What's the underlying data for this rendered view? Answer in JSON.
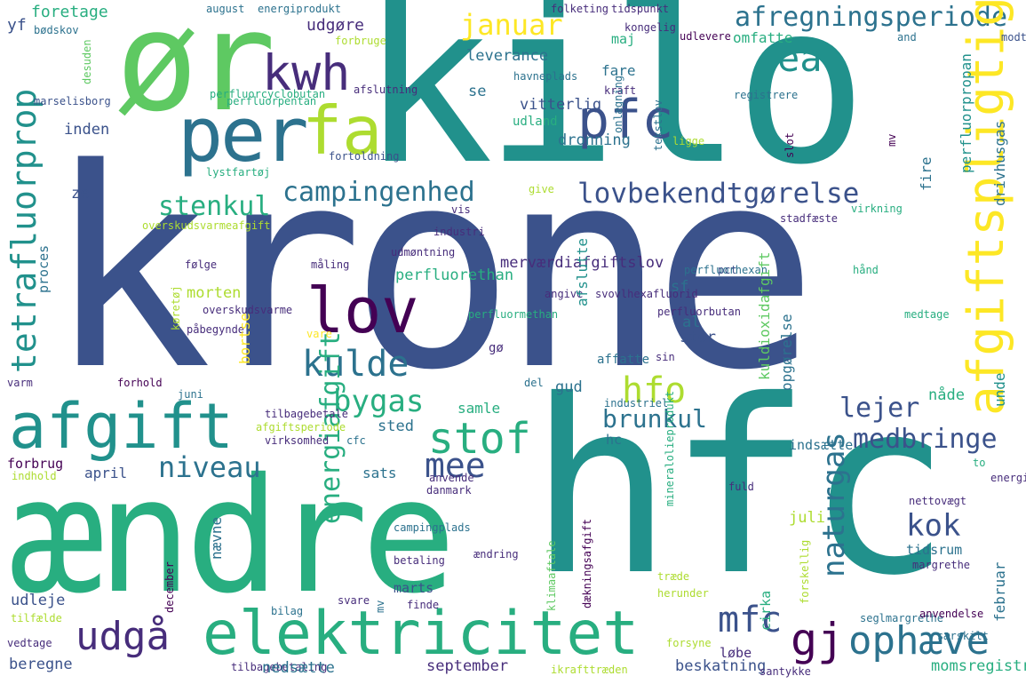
{
  "words": [
    {
      "id": "krone",
      "text": "krone"
    },
    {
      "id": "kilo",
      "text": "kilo"
    },
    {
      "id": "aendre",
      "text": "ændre"
    },
    {
      "id": "hfc",
      "text": "hfc"
    },
    {
      "id": "or",
      "text": "ør"
    },
    {
      "id": "per",
      "text": "per"
    },
    {
      "id": "kwh",
      "text": "kwh"
    },
    {
      "id": "fa",
      "text": "fa"
    },
    {
      "id": "pfc",
      "text": "pfc"
    },
    {
      "id": "ea",
      "text": "ea"
    },
    {
      "id": "afregningsperiode",
      "text": "afregningsperiode"
    },
    {
      "id": "januar",
      "text": "januar"
    },
    {
      "id": "afgiftspligtig",
      "text": "afgiftspligtig"
    },
    {
      "id": "lovbekendtgorelse",
      "text": "lovbekendtgørelse"
    },
    {
      "id": "campingenhed",
      "text": "campingenhed"
    },
    {
      "id": "stenkul",
      "text": "stenkul"
    },
    {
      "id": "lov",
      "text": "lov"
    },
    {
      "id": "kulde",
      "text": "kulde"
    },
    {
      "id": "tetrafluorprop",
      "text": "tetrafluorprop"
    },
    {
      "id": "afgift",
      "text": "afgift"
    },
    {
      "id": "stof",
      "text": "stof"
    },
    {
      "id": "mee",
      "text": "mee"
    },
    {
      "id": "bygas",
      "text": "bygas"
    },
    {
      "id": "hfo",
      "text": "hfo"
    },
    {
      "id": "brunkul",
      "text": "brunkul"
    },
    {
      "id": "lejer",
      "text": "lejer"
    },
    {
      "id": "medbringe",
      "text": "medbringe"
    },
    {
      "id": "niveau",
      "text": "niveau"
    },
    {
      "id": "energiafgift",
      "text": "energiafgift"
    },
    {
      "id": "naturgas",
      "text": "naturgas"
    },
    {
      "id": "kok",
      "text": "kok"
    },
    {
      "id": "udga",
      "text": "udgå"
    },
    {
      "id": "elektricitet",
      "text": "elektricitet"
    },
    {
      "id": "mfc",
      "text": "mfc"
    },
    {
      "id": "gj",
      "text": "gj"
    },
    {
      "id": "ophaeve",
      "text": "ophæve"
    },
    {
      "id": "foretage",
      "text": "foretage"
    },
    {
      "id": "august",
      "text": "august"
    },
    {
      "id": "energiprodukt",
      "text": "energiprodukt"
    },
    {
      "id": "folketing",
      "text": "folketing"
    },
    {
      "id": "tidspunkt",
      "text": "tidspunkt"
    },
    {
      "id": "yf",
      "text": "yf"
    },
    {
      "id": "bodskov",
      "text": "bødskov"
    },
    {
      "id": "udgore",
      "text": "udgøre"
    },
    {
      "id": "forbruge",
      "text": "forbruge"
    },
    {
      "id": "kongelig",
      "text": "kongelig"
    },
    {
      "id": "udlevere",
      "text": "udlevere"
    },
    {
      "id": "and",
      "text": "and"
    },
    {
      "id": "modtage",
      "text": "modtage"
    },
    {
      "id": "maj",
      "text": "maj"
    },
    {
      "id": "omfatte",
      "text": "omfatte"
    },
    {
      "id": "leverance",
      "text": "leverance"
    },
    {
      "id": "fare",
      "text": "fare"
    },
    {
      "id": "havneplads",
      "text": "havneplads"
    },
    {
      "id": "marselisborg",
      "text": "marselisborg"
    },
    {
      "id": "perfluorcyclobutan",
      "text": "perfluorcyclobutan"
    },
    {
      "id": "perfluorpentan",
      "text": "perfluorpentan"
    },
    {
      "id": "afslutning",
      "text": "afslutning"
    },
    {
      "id": "se",
      "text": "se"
    },
    {
      "id": "vitterlig",
      "text": "vitterlig"
    },
    {
      "id": "kraft",
      "text": "kraft"
    },
    {
      "id": "registrere",
      "text": "registrere"
    },
    {
      "id": "udland",
      "text": "udland"
    },
    {
      "id": "inden",
      "text": "inden"
    },
    {
      "id": "dronning",
      "text": "dronning"
    },
    {
      "id": "fortoldning",
      "text": "fortoldning"
    },
    {
      "id": "lystfartoj",
      "text": "lystfartøj"
    },
    {
      "id": "ze",
      "text": "ze"
    },
    {
      "id": "ligge",
      "text": "ligge"
    },
    {
      "id": "give",
      "text": "give"
    },
    {
      "id": "vis",
      "text": "vis"
    },
    {
      "id": "stadfaeste",
      "text": "stadfæste"
    },
    {
      "id": "virkning",
      "text": "virkning"
    },
    {
      "id": "overskudsvarmeafgift",
      "text": "overskudsvarmeafgift"
    },
    {
      "id": "industri",
      "text": "industri"
    },
    {
      "id": "udmontning",
      "text": "udmøntning"
    },
    {
      "id": "folge",
      "text": "følge"
    },
    {
      "id": "maling",
      "text": "måling"
    },
    {
      "id": "mervaerdiafgiftslov",
      "text": "merværdiafgiftslov"
    },
    {
      "id": "perfluorhexan",
      "text": "perfluorhexan"
    },
    {
      "id": "pct",
      "text": "pct"
    },
    {
      "id": "hand",
      "text": "hånd"
    },
    {
      "id": "perfluorethan",
      "text": "perfluorethan"
    },
    {
      "id": "sf",
      "text": "sf"
    },
    {
      "id": "morten",
      "text": "morten"
    },
    {
      "id": "angive",
      "text": "angive"
    },
    {
      "id": "svovlhexafluorid",
      "text": "svovlhexafluorid"
    },
    {
      "id": "overskudsvarme",
      "text": "overskudsvarme"
    },
    {
      "id": "perfluormethan",
      "text": "perfluormethan"
    },
    {
      "id": "perfluorbutan",
      "text": "perfluorbutan"
    },
    {
      "id": "medtage",
      "text": "medtage"
    },
    {
      "id": "pabegynde",
      "text": "påbegynde"
    },
    {
      "id": "vare",
      "text": "vare"
    },
    {
      "id": "al",
      "text": "al"
    },
    {
      "id": "stor",
      "text": "stor"
    },
    {
      "id": "go",
      "text": "gø"
    },
    {
      "id": "affatte",
      "text": "affatte"
    },
    {
      "id": "sin",
      "text": "sin"
    },
    {
      "id": "varm",
      "text": "varm"
    },
    {
      "id": "forhold",
      "text": "forhold"
    },
    {
      "id": "del",
      "text": "del"
    },
    {
      "id": "gud",
      "text": "gud"
    },
    {
      "id": "juni",
      "text": "juni"
    },
    {
      "id": "industriel",
      "text": "industriel"
    },
    {
      "id": "nade",
      "text": "nåde"
    },
    {
      "id": "tilbagebetale",
      "text": "tilbagebetale"
    },
    {
      "id": "samle",
      "text": "samle"
    },
    {
      "id": "afgiftsperiode",
      "text": "afgiftsperiode"
    },
    {
      "id": "sted",
      "text": "sted"
    },
    {
      "id": "virksomhed",
      "text": "virksomhed"
    },
    {
      "id": "cfc",
      "text": "cfc"
    },
    {
      "id": "hc",
      "text": "hc"
    },
    {
      "id": "indsaette",
      "text": "indsætte"
    },
    {
      "id": "forbrug",
      "text": "forbrug"
    },
    {
      "id": "indhold",
      "text": "indhold"
    },
    {
      "id": "april",
      "text": "april"
    },
    {
      "id": "sats",
      "text": "sats"
    },
    {
      "id": "anvende",
      "text": "anvende"
    },
    {
      "id": "danmark",
      "text": "danmark"
    },
    {
      "id": "to",
      "text": "to"
    },
    {
      "id": "energi",
      "text": "energi"
    },
    {
      "id": "nettovaegt",
      "text": "nettovægt"
    },
    {
      "id": "fuld",
      "text": "fuld"
    },
    {
      "id": "juli",
      "text": "juli"
    },
    {
      "id": "tidsrum",
      "text": "tidsrum"
    },
    {
      "id": "margrethe",
      "text": "margrethe"
    },
    {
      "id": "campingplads",
      "text": "campingplads"
    },
    {
      "id": "betaling",
      "text": "betaling"
    },
    {
      "id": "aendring",
      "text": "ændring"
    },
    {
      "id": "trade",
      "text": "træde"
    },
    {
      "id": "udleje",
      "text": "udleje"
    },
    {
      "id": "marts",
      "text": "marts"
    },
    {
      "id": "herunder",
      "text": "herunder"
    },
    {
      "id": "svare",
      "text": "svare"
    },
    {
      "id": "finde",
      "text": "finde"
    },
    {
      "id": "tilfaelde",
      "text": "tilfælde"
    },
    {
      "id": "bilag",
      "text": "bilag"
    },
    {
      "id": "seglmargrethe",
      "text": "seglmargrethe"
    },
    {
      "id": "anvendelse",
      "text": "anvendelse"
    },
    {
      "id": "vedtage",
      "text": "vedtage"
    },
    {
      "id": "forsyne",
      "text": "forsyne"
    },
    {
      "id": "saerskilt",
      "text": "særskilt"
    },
    {
      "id": "lobe",
      "text": "løbe"
    },
    {
      "id": "beregne",
      "text": "beregne"
    },
    {
      "id": "tilbagebetaling",
      "text": "tilbagebetaling"
    },
    {
      "id": "nedsaette",
      "text": "nedsætte"
    },
    {
      "id": "september",
      "text": "september"
    },
    {
      "id": "ikrafttraeden",
      "text": "ikrafttræden"
    },
    {
      "id": "beskatning",
      "text": "beskatning"
    },
    {
      "id": "santykke",
      "text": "santykke"
    },
    {
      "id": "momsregistrere",
      "text": "momsregistrere"
    },
    {
      "id": "desuden",
      "text": "desuden"
    },
    {
      "id": "perfluorpropan",
      "text": "perfluorpropan"
    },
    {
      "id": "drivhusgas",
      "text": "drivhusgas"
    },
    {
      "id": "onlaegning",
      "text": "onlægning"
    },
    {
      "id": "tekstlov",
      "text": "tekstlov"
    },
    {
      "id": "slot",
      "text": "slot"
    },
    {
      "id": "mv",
      "text": "mv"
    },
    {
      "id": "proces",
      "text": "proces"
    },
    {
      "id": "afslutte",
      "text": "afslutte"
    },
    {
      "id": "fire",
      "text": "fire"
    },
    {
      "id": "kuldioxidafgift",
      "text": "kuldioxidafgift"
    },
    {
      "id": "opgorelse",
      "text": "opgørelse"
    },
    {
      "id": "unde",
      "text": "unde"
    },
    {
      "id": "bortse",
      "text": "bortse"
    },
    {
      "id": "koretoj",
      "text": "køretøj"
    },
    {
      "id": "mineralolieprodukt",
      "text": "mineralolieprodukt"
    },
    {
      "id": "naevne",
      "text": "nævne"
    },
    {
      "id": "december",
      "text": "december"
    },
    {
      "id": "klimaaftale",
      "text": "klimaaftale"
    },
    {
      "id": "daekningsafgift",
      "text": "dækningsafgift"
    },
    {
      "id": "cirka",
      "text": "cirka"
    },
    {
      "id": "forskellig",
      "text": "forskellig"
    },
    {
      "id": "februar",
      "text": "februar"
    }
  ]
}
